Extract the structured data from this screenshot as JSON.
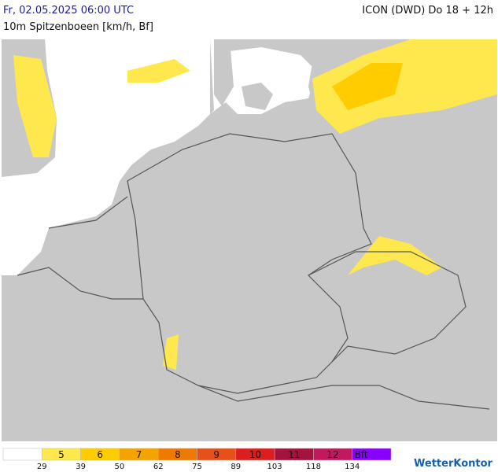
{
  "header": {
    "datetime": "Fr, 02.05.2025 06:00 UTC",
    "model": "ICON (DWD) Do 18 + 12h",
    "subtitle": "10m Spitzenboeen [km/h, Bf]"
  },
  "legend": {
    "colors": [
      "#ffffff",
      "#ffe84d",
      "#ffcc00",
      "#f5a300",
      "#f07a00",
      "#e8501a",
      "#dc1e1e",
      "#a3133e",
      "#c2185e",
      "#8a00ff"
    ],
    "bf": [
      "5",
      "6",
      "7",
      "8",
      "9",
      "10",
      "11",
      "12",
      "Bft"
    ],
    "kmh": [
      29,
      39,
      50,
      62,
      75,
      89,
      103,
      118,
      134
    ]
  },
  "logo": "WetterKontor"
}
